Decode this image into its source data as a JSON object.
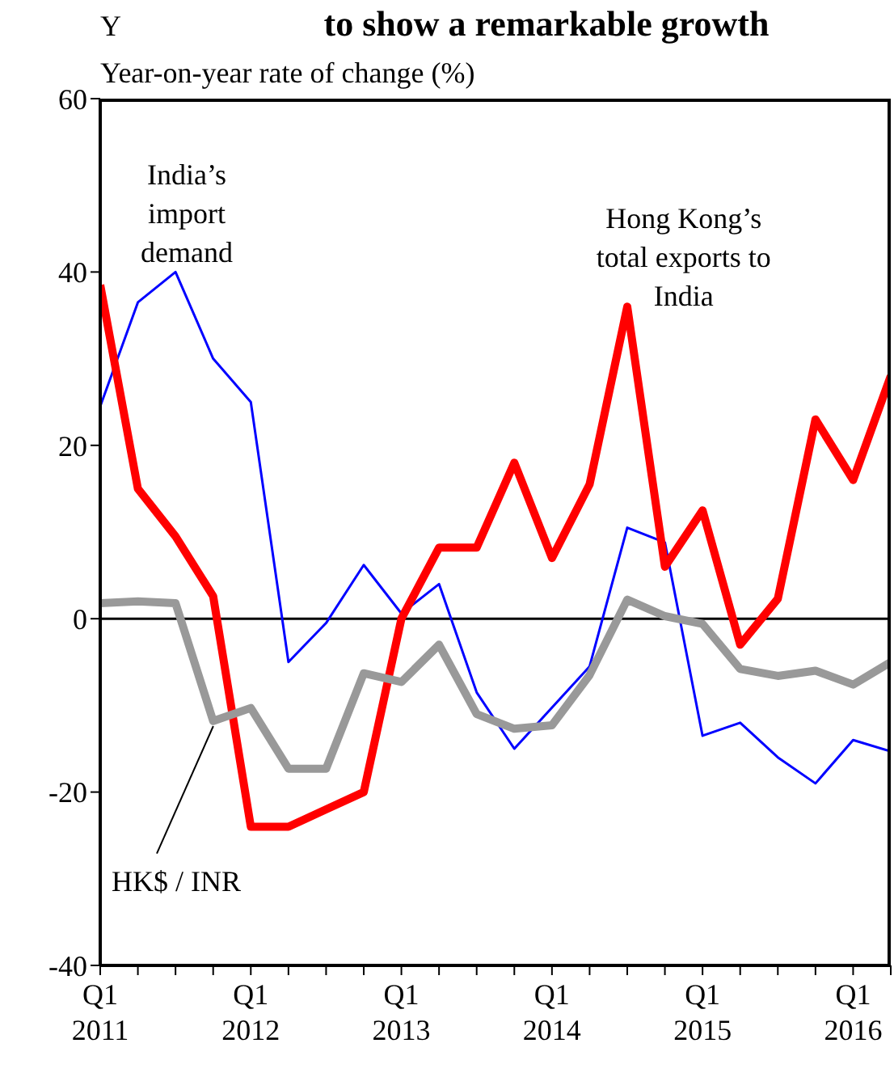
{
  "chart_data": {
    "type": "line",
    "title": "to show a remarkable growth",
    "ylabel": "Year-on-year rate of change (%)",
    "annotations": [
      "Y"
    ],
    "categories": [
      "Q1\n2011",
      null,
      null,
      null,
      "Q1\n2012",
      null,
      null,
      null,
      "Q1\n2013",
      null,
      null,
      null,
      "Q1\n2014",
      null,
      null,
      null,
      "Q1\n2015",
      null,
      null,
      null,
      "Q1\n2016",
      null
    ],
    "series": [
      {
        "name": "India’s import demand",
        "color": "#0000ff",
        "values": [
          24.5,
          36.5,
          40,
          30,
          25,
          -5,
          -0.5,
          6.2,
          0.6,
          4,
          -8.5,
          -15,
          null,
          -5.5,
          10.5,
          8.8,
          -13.5,
          -12,
          -16,
          -19,
          -14,
          -15.3
        ]
      },
      {
        "name": "Hong Kong’s total exports to India",
        "color": "#ff0000",
        "values": [
          38.5,
          15,
          9.5,
          2.6,
          -24,
          -24,
          -22,
          -20,
          0,
          8.2,
          8.2,
          18,
          7,
          15.5,
          36,
          6,
          12.5,
          -3,
          2.3,
          23,
          16,
          28
        ]
      },
      {
        "name": "HK$ / INR",
        "color": "#999999",
        "values": [
          1.8,
          2,
          1.8,
          -11.8,
          -10.3,
          -17.3,
          -17.3,
          -6.3,
          -7.3,
          -3,
          -11,
          -12.7,
          -12.3,
          -6.5,
          2.2,
          0.3,
          -0.6,
          -5.8,
          -6.6,
          -6,
          -7.6,
          -5
        ]
      }
    ],
    "ylim": [
      -40,
      60
    ],
    "yticks": [
      -40,
      -20,
      0,
      20,
      40,
      60
    ],
    "ref_lines": [
      {
        "axis": "y",
        "value": 0,
        "color": "#000000"
      }
    ],
    "grid": false,
    "legend": false,
    "marker": "none",
    "line_style": "solid"
  }
}
